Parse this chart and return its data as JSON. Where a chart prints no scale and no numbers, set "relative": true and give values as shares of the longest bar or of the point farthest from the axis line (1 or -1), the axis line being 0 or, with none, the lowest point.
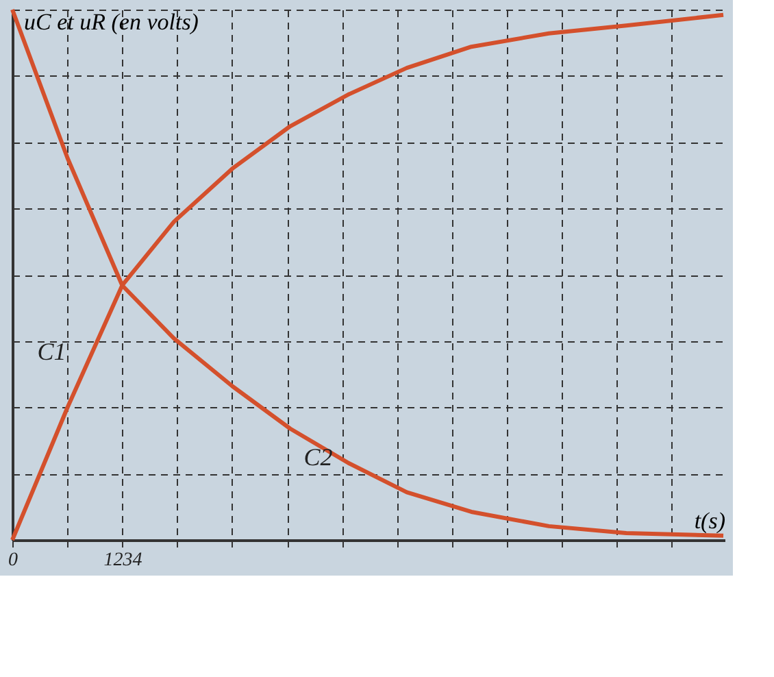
{
  "chart_data": {
    "type": "line",
    "relative": true,
    "xlabel": "t(s)",
    "ylabel": "uC et uR (en volts)",
    "xlim": [
      0,
      8000
    ],
    "xticks": [
      0,
      1234
    ],
    "grid": true,
    "marker": "none",
    "line_style": "solid",
    "series": [
      {
        "name": "C1",
        "color": "#d4502c",
        "x": [
          0,
          620,
          1234,
          1815,
          2470,
          3120,
          3775,
          4430,
          5155,
          6025,
          6895,
          7985
        ],
        "values": [
          0,
          0.25,
          0.48,
          0.6,
          0.7,
          0.78,
          0.84,
          0.89,
          0.93,
          0.955,
          0.97,
          0.99
        ]
      },
      {
        "name": "C2",
        "color": "#d4502c",
        "x": [
          0,
          620,
          1234,
          1815,
          2470,
          3120,
          3775,
          4430,
          5155,
          6025,
          6895,
          7985
        ],
        "values": [
          1.0,
          0.72,
          0.48,
          0.38,
          0.29,
          0.21,
          0.145,
          0.09,
          0.053,
          0.026,
          0.013,
          0.008
        ]
      }
    ]
  }
}
